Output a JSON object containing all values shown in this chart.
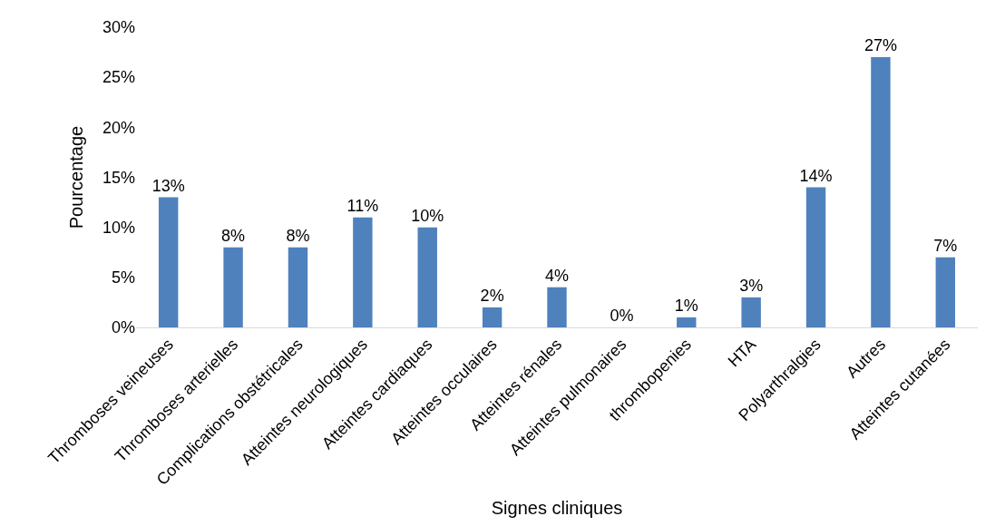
{
  "chart_data": {
    "type": "bar",
    "xlabel": "Signes cliniques",
    "ylabel": "Pourcentage",
    "categories": [
      "Thromboses veineuses",
      "Thromboses arterielles",
      "Complications obstétricales",
      "Atteintes neurologiques",
      "Atteintes cardiaques",
      "Atteintes occulaires",
      "Atteintes rénales",
      "Atteintes pulmonaires",
      "thrombopenies",
      "HTA",
      "Polyarthralgies",
      "Autres",
      "Atteintes cutanées"
    ],
    "values": [
      13,
      8,
      8,
      11,
      10,
      2,
      4,
      0,
      1,
      3,
      14,
      27,
      7
    ],
    "value_labels": [
      "13%",
      "8%",
      "8%",
      "11%",
      "10%",
      "2%",
      "4%",
      "0%",
      "1%",
      "3%",
      "14%",
      "27%",
      "7%"
    ],
    "color": "#4f81bd",
    "ylim": [
      0,
      30
    ],
    "yticks": [
      {
        "value": 0,
        "label": "0%"
      },
      {
        "value": 5,
        "label": "5%"
      },
      {
        "value": 10,
        "label": "10%"
      },
      {
        "value": 15,
        "label": "15%"
      },
      {
        "value": 20,
        "label": "20%"
      },
      {
        "value": 25,
        "label": "25%"
      },
      {
        "value": 30,
        "label": "30%"
      }
    ]
  }
}
